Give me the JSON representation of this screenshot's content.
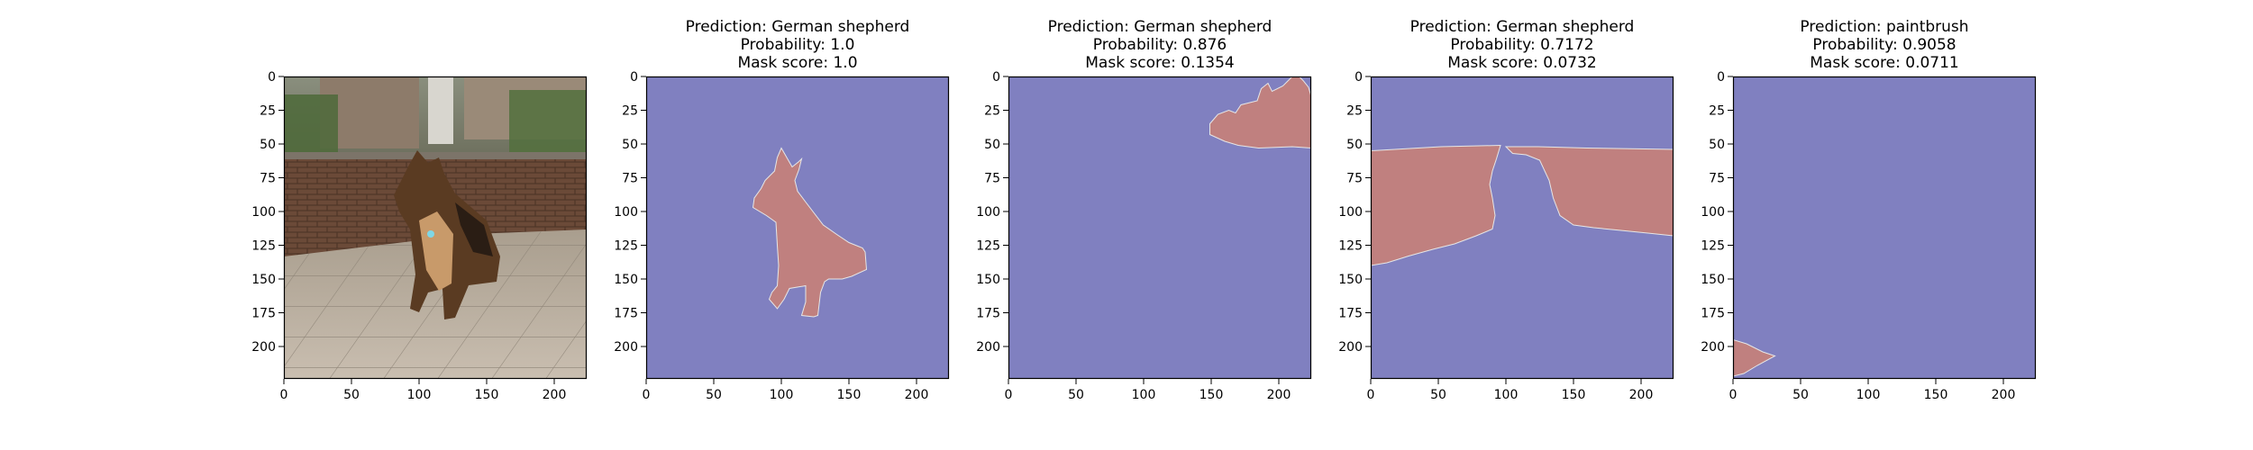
{
  "colors": {
    "background": "#8080c0",
    "mask": "#c0807f",
    "mask_edge": "#e6e6e6",
    "axis": "#000000"
  },
  "panels": [
    {
      "kind": "photo",
      "title": [],
      "xticks": [
        0,
        50,
        100,
        150,
        200
      ],
      "yticks": [
        0,
        25,
        50,
        75,
        100,
        125,
        150,
        175,
        200
      ]
    },
    {
      "kind": "mask",
      "title": [
        "Prediction: German shepherd",
        "Probability: 1.0",
        "Mask score: 1.0"
      ],
      "xticks": [
        0,
        50,
        100,
        150,
        200
      ],
      "yticks": [
        0,
        25,
        50,
        75,
        100,
        125,
        150,
        175,
        200
      ]
    },
    {
      "kind": "mask",
      "title": [
        "Prediction: German shepherd",
        "Probability: 0.876",
        "Mask score: 0.1354"
      ],
      "xticks": [
        0,
        50,
        100,
        150,
        200
      ],
      "yticks": [
        0,
        25,
        50,
        75,
        100,
        125,
        150,
        175,
        200
      ]
    },
    {
      "kind": "mask",
      "title": [
        "Prediction: German shepherd",
        "Probability: 0.7172",
        "Mask score: 0.0732"
      ],
      "xticks": [
        0,
        50,
        100,
        150,
        200
      ],
      "yticks": [
        0,
        25,
        50,
        75,
        100,
        125,
        150,
        175,
        200
      ]
    },
    {
      "kind": "mask",
      "title": [
        "Prediction: paintbrush",
        "Probability: 0.9058",
        "Mask score: 0.0711"
      ],
      "xticks": [
        0,
        50,
        100,
        150,
        200
      ],
      "yticks": [
        0,
        25,
        50,
        75,
        100,
        125,
        150,
        175,
        200
      ]
    }
  ],
  "chart_data": {
    "type": "heatmap",
    "image_size": [
      224,
      224
    ],
    "xlim": [
      0,
      224
    ],
    "ylim": [
      224,
      0
    ],
    "masks": [
      {
        "panel": 1,
        "polygon": [
          [
            100,
            53
          ],
          [
            104,
            60
          ],
          [
            108,
            67
          ],
          [
            113,
            63
          ],
          [
            115,
            61
          ],
          [
            113,
            69
          ],
          [
            110,
            77
          ],
          [
            112,
            85
          ],
          [
            118,
            93
          ],
          [
            131,
            110
          ],
          [
            141,
            117
          ],
          [
            150,
            123
          ],
          [
            160,
            127
          ],
          [
            162,
            130
          ],
          [
            163,
            143
          ],
          [
            152,
            148
          ],
          [
            145,
            150
          ],
          [
            135,
            150
          ],
          [
            132,
            152
          ],
          [
            129,
            160
          ],
          [
            127,
            177
          ],
          [
            124,
            178
          ],
          [
            115,
            177
          ],
          [
            118,
            167
          ],
          [
            118,
            155
          ],
          [
            106,
            157
          ],
          [
            102,
            165
          ],
          [
            97,
            172
          ],
          [
            91,
            165
          ],
          [
            93,
            160
          ],
          [
            97,
            155
          ],
          [
            98,
            140
          ],
          [
            97,
            125
          ],
          [
            96,
            108
          ],
          [
            89,
            103
          ],
          [
            79,
            97
          ],
          [
            80,
            90
          ],
          [
            85,
            83
          ],
          [
            88,
            77
          ],
          [
            95,
            70
          ],
          [
            97,
            60
          ]
        ]
      },
      {
        "panel": 2,
        "polygon": [
          [
            149,
            35
          ],
          [
            155,
            28
          ],
          [
            163,
            25
          ],
          [
            168,
            27
          ],
          [
            172,
            21
          ],
          [
            184,
            18
          ],
          [
            187,
            9
          ],
          [
            192,
            5
          ],
          [
            195,
            11
          ],
          [
            203,
            7
          ],
          [
            210,
            0
          ],
          [
            215,
            0
          ],
          [
            218,
            3
          ],
          [
            222,
            8
          ],
          [
            224,
            15
          ],
          [
            224,
            53
          ],
          [
            210,
            52
          ],
          [
            185,
            53
          ],
          [
            170,
            51
          ],
          [
            160,
            48
          ],
          [
            149,
            43
          ]
        ]
      },
      {
        "panel": 3,
        "polygon": [
          [
            0,
            55
          ],
          [
            52,
            52
          ],
          [
            96,
            51
          ],
          [
            93,
            61
          ],
          [
            90,
            70
          ],
          [
            88,
            80
          ],
          [
            90,
            90
          ],
          [
            92,
            103
          ],
          [
            90,
            113
          ],
          [
            78,
            118
          ],
          [
            62,
            124
          ],
          [
            46,
            128
          ],
          [
            28,
            133
          ],
          [
            12,
            138
          ],
          [
            0,
            140
          ]
        ]
      },
      {
        "panel": 3,
        "polygon": [
          [
            100,
            52
          ],
          [
            124,
            52
          ],
          [
            160,
            53
          ],
          [
            224,
            54
          ],
          [
            224,
            118
          ],
          [
            205,
            116
          ],
          [
            185,
            114
          ],
          [
            165,
            112
          ],
          [
            150,
            110
          ],
          [
            140,
            103
          ],
          [
            135,
            90
          ],
          [
            132,
            77
          ],
          [
            125,
            62
          ],
          [
            115,
            58
          ],
          [
            105,
            57
          ]
        ]
      },
      {
        "panel": 4,
        "polygon": [
          [
            0,
            195
          ],
          [
            10,
            198
          ],
          [
            22,
            204
          ],
          [
            31,
            207
          ],
          [
            18,
            214
          ],
          [
            8,
            220
          ],
          [
            0,
            222
          ]
        ]
      }
    ]
  }
}
